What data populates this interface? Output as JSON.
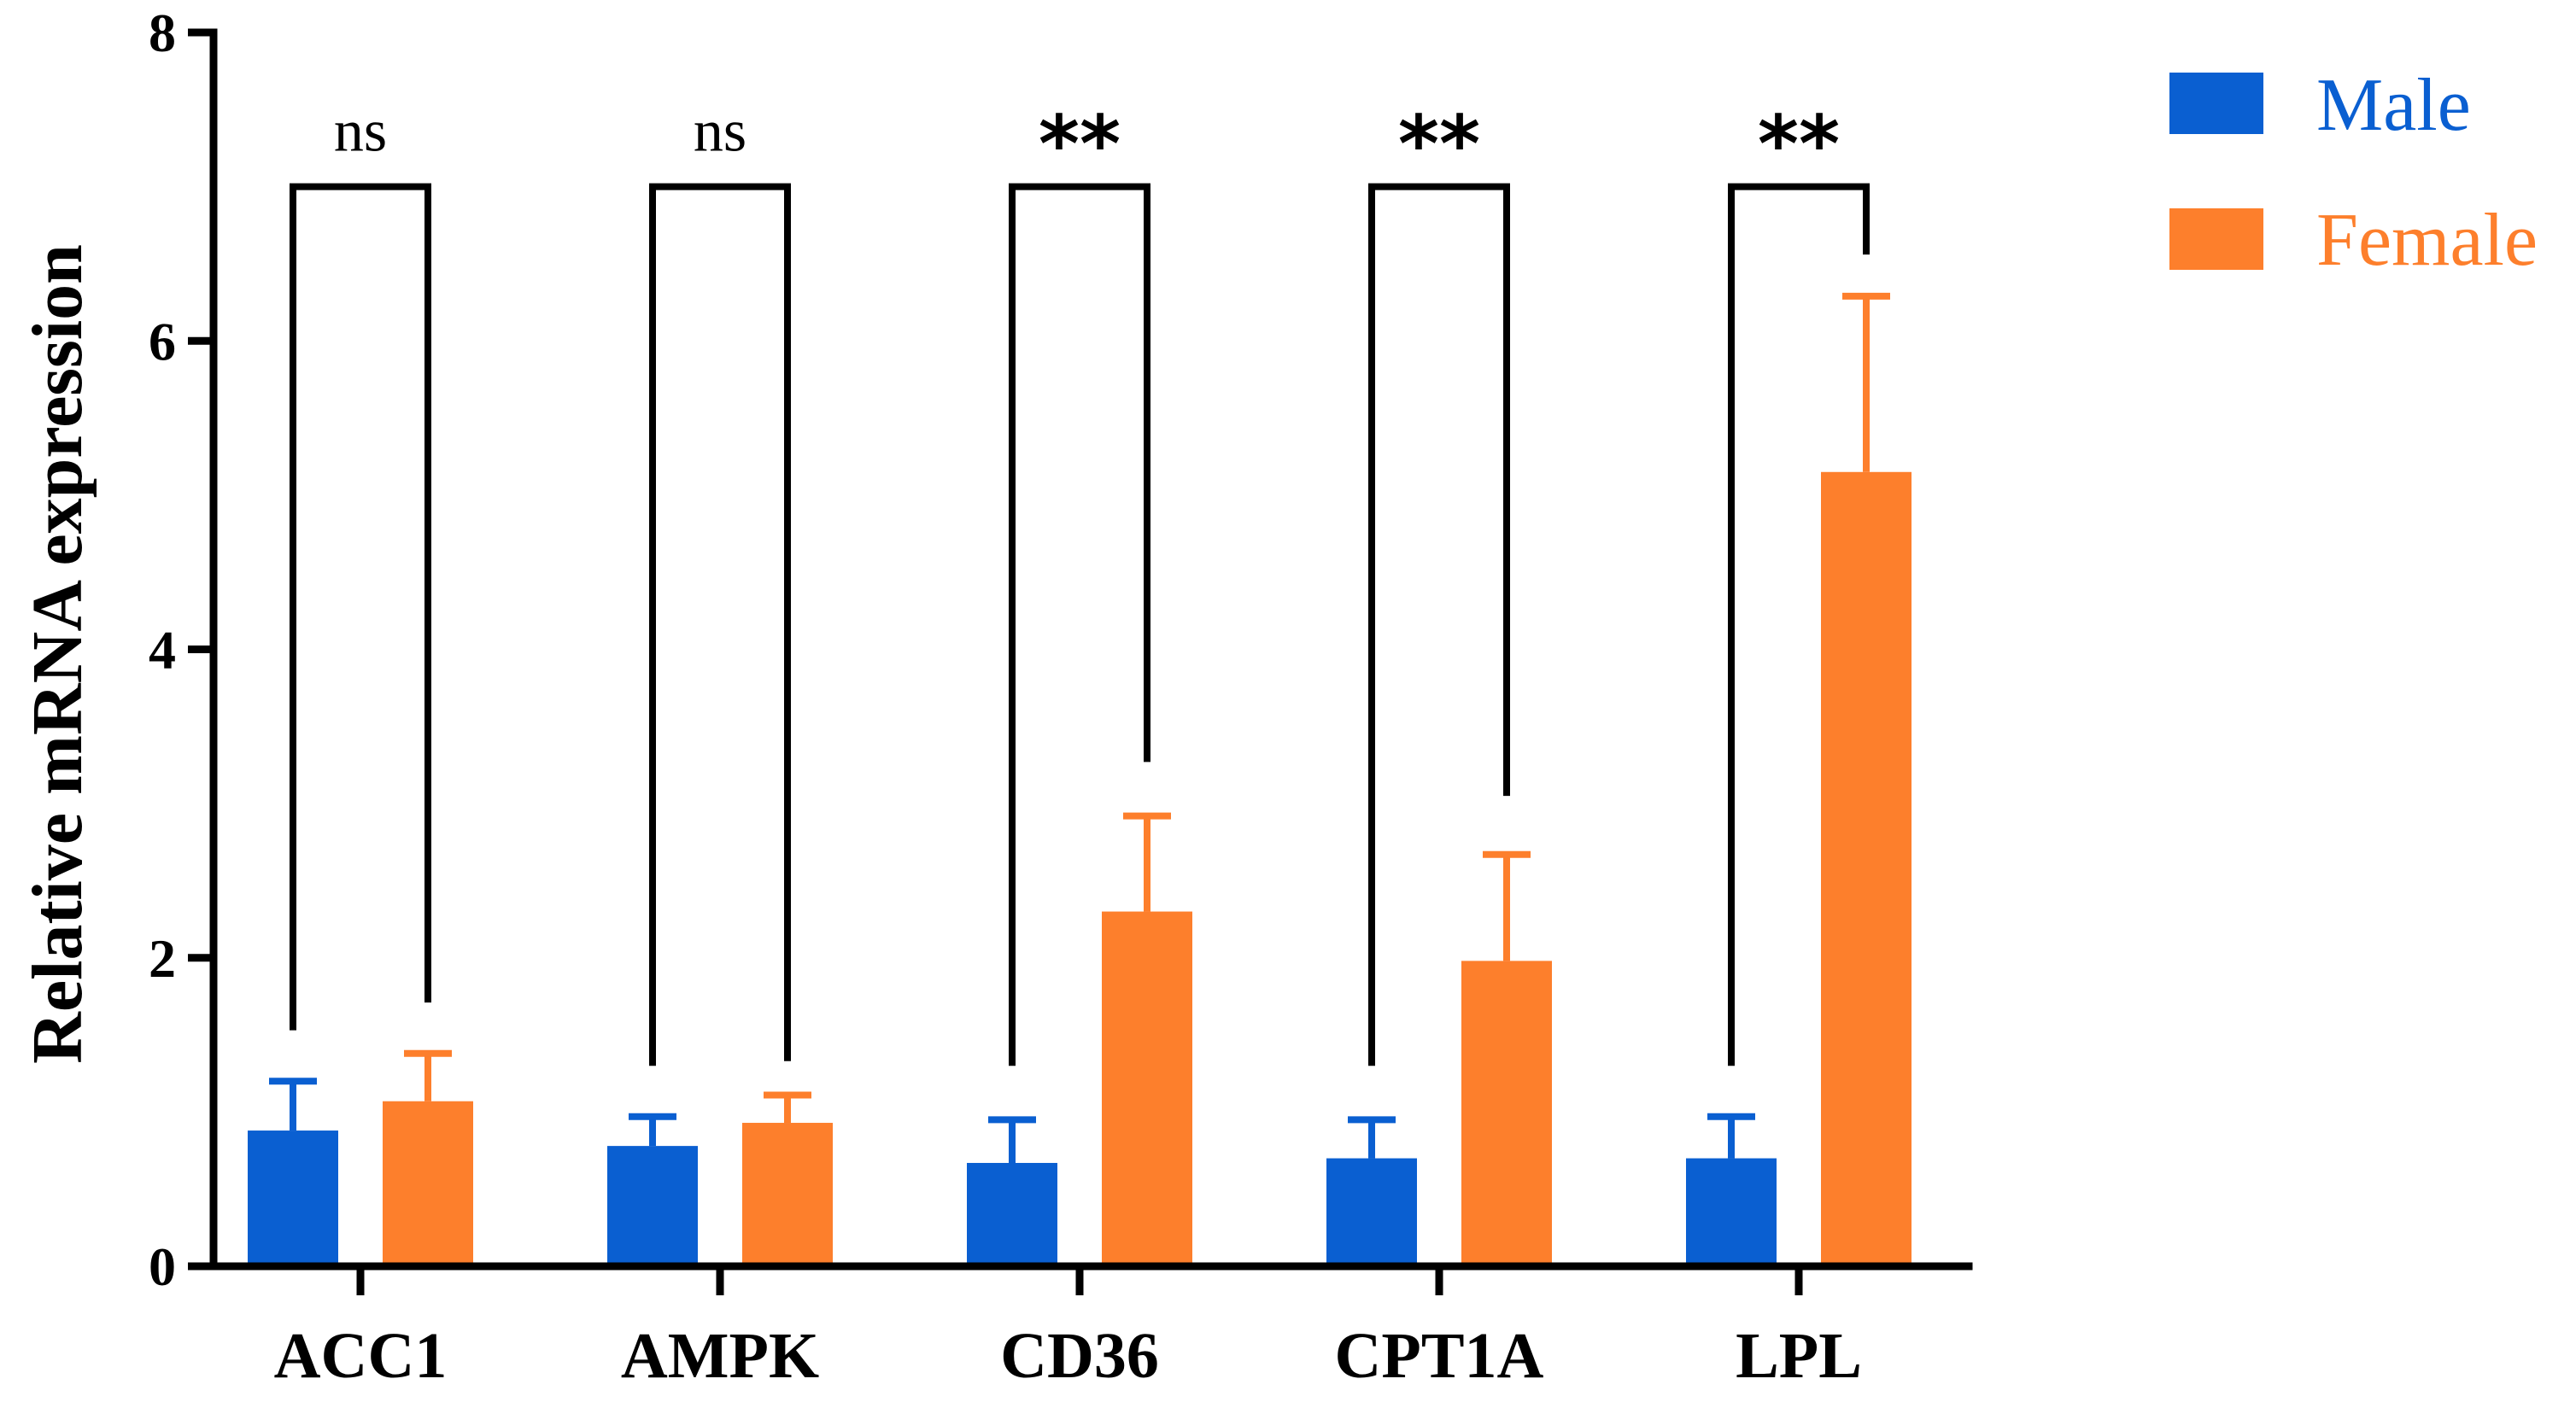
{
  "chart_data": {
    "type": "bar",
    "title": "",
    "xlabel": "",
    "ylabel": "Relative mRNA expression",
    "ylim": [
      0,
      8
    ],
    "yticks": [
      0,
      2,
      4,
      6,
      8
    ],
    "categories": [
      "ACC1",
      "AMPK",
      "CD36",
      "CPT1A",
      "LPL"
    ],
    "series": [
      {
        "name": "Male",
        "color": "#0a5fd1",
        "values": [
          0.88,
          0.78,
          0.67,
          0.7,
          0.7
        ],
        "error": [
          0.32,
          0.19,
          0.28,
          0.25,
          0.27
        ]
      },
      {
        "name": "Female",
        "color": "#fd7f2c",
        "values": [
          1.07,
          0.93,
          2.3,
          1.98,
          5.15
        ],
        "error": [
          0.31,
          0.18,
          0.62,
          0.69,
          1.14
        ]
      }
    ],
    "significance": [
      {
        "category": "ACC1",
        "label": "ns",
        "left_end": 1.53,
        "right_end": 1.71
      },
      {
        "category": "AMPK",
        "label": "ns",
        "left_end": 1.3,
        "right_end": 1.33
      },
      {
        "category": "CD36",
        "label": "**",
        "left_end": 1.3,
        "right_end": 3.27
      },
      {
        "category": "CPT1A",
        "label": "**",
        "left_end": 1.3,
        "right_end": 3.05
      },
      {
        "category": "LPL",
        "label": "**",
        "left_end": 1.3,
        "right_end": 6.56
      }
    ],
    "bracket_level": 7.0,
    "grid": false,
    "legend_position": "top-right"
  }
}
